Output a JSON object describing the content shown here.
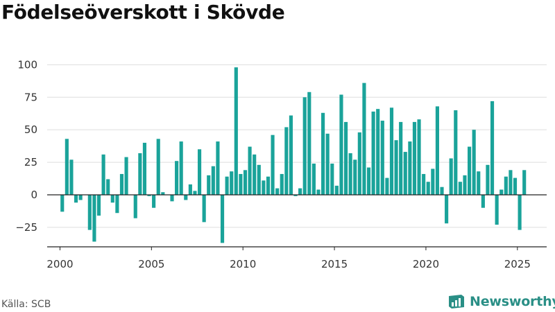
{
  "title": "Födelseöverskott i Skövde",
  "source": "Källa: SCB",
  "brand": {
    "name": "Newsworthy",
    "logo_icon": "newsworthy-logo-icon"
  },
  "colors": {
    "bar": "#1aa39a",
    "brand": "#2a8f86",
    "grid": "#dddddd",
    "axis": "#222222"
  },
  "chart_data": {
    "type": "bar",
    "title": "Födelseöverskott i Skövde",
    "xlabel": "",
    "ylabel": "",
    "ylim": [
      -40,
      105
    ],
    "xlim": [
      1999.3,
      2026.6
    ],
    "y_ticks": [
      -25,
      0,
      25,
      50,
      75,
      100
    ],
    "x_ticks": [
      2000,
      2005,
      2010,
      2015,
      2020,
      2025
    ],
    "y_tick_labels": [
      "−25",
      "0",
      "25",
      "50",
      "75",
      "100"
    ],
    "x_tick_labels": [
      "2000",
      "2005",
      "2010",
      "2015",
      "2020",
      "2025"
    ],
    "grid": "horizontal",
    "start_year": 2000,
    "periods_per_year": 4,
    "series": [
      {
        "values": [
          -13,
          43,
          27,
          -6,
          -4,
          0,
          -27,
          -36,
          -16,
          31,
          12,
          -6,
          -14,
          16,
          29,
          0,
          -18,
          32,
          40,
          -1,
          -10,
          43,
          2,
          0,
          -5,
          26,
          41,
          -4,
          8,
          3,
          35,
          -21,
          15,
          22,
          41,
          -37,
          14,
          18,
          98,
          16,
          19,
          37,
          31,
          23,
          11,
          14,
          46,
          5,
          16,
          52,
          61,
          -1,
          5,
          75,
          79,
          24,
          4,
          63,
          47,
          24,
          7,
          77,
          56,
          32,
          27,
          48,
          86,
          21,
          64,
          66,
          57,
          13,
          67,
          42,
          56,
          33,
          41,
          56,
          58,
          16,
          10,
          20,
          68,
          6,
          -22,
          28,
          65,
          10,
          15,
          37,
          50,
          18,
          -10,
          23,
          72,
          -23,
          4,
          14,
          19,
          13,
          -27,
          19
        ]
      }
    ]
  }
}
